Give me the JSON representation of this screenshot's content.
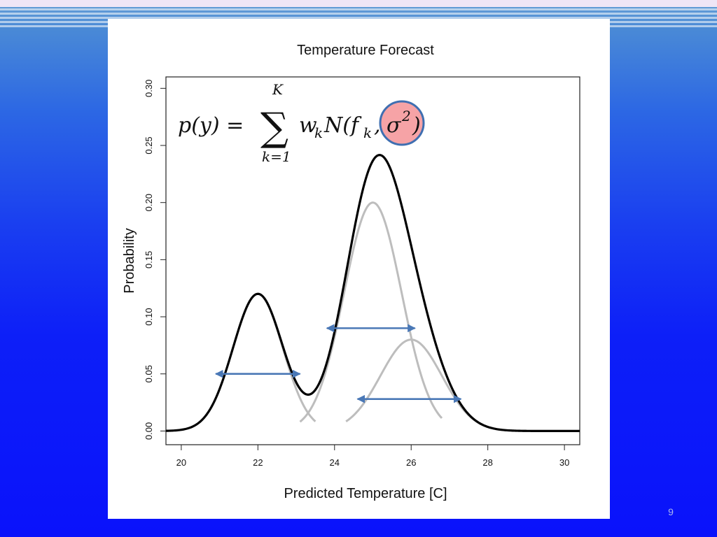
{
  "slide": {
    "number": "9"
  },
  "colors": {
    "mixture": "#000000",
    "component": "#bdbdbd",
    "arrow": "#4a78b6",
    "highlight_fill": "#f6a3a6",
    "highlight_stroke": "#3f6fb1"
  },
  "formula": {
    "lhs": "p(y) =",
    "sum_symbol": "∑",
    "upper": "K",
    "lower": "k=1",
    "term": "w",
    "term_sub": "k",
    "normal": "N(f",
    "normal_sub": "k",
    "comma": ",",
    "sigma": "σ",
    "sigma_sup": "2",
    "close": ")"
  },
  "chart_data": {
    "type": "line",
    "title": "Temperature Forecast",
    "xlabel": "Predicted Temperature [C]",
    "ylabel": "Probability",
    "xlim": [
      19.6,
      30.4
    ],
    "ylim": [
      -0.012,
      0.31
    ],
    "x_ticks": [
      "20",
      "22",
      "24",
      "26",
      "28",
      "30"
    ],
    "y_ticks": [
      "0.00",
      "0.05",
      "0.10",
      "0.15",
      "0.20",
      "0.25",
      "0.30"
    ],
    "components": [
      {
        "mean": 22,
        "sd": 0.65,
        "weight": 0.195,
        "peak": 0.12,
        "x_range": [
          21.7,
          23.5
        ]
      },
      {
        "mean": 25,
        "sd": 0.75,
        "weight": 0.376,
        "peak": 0.2,
        "x_range": [
          23.1,
          26.8
        ]
      },
      {
        "mean": 26,
        "sd": 0.8,
        "weight": 0.16,
        "peak": 0.08,
        "x_range": [
          24.3,
          28.1
        ]
      }
    ],
    "mixture_x_range": [
      19.6,
      30.4
    ],
    "arrows": [
      {
        "y": 0.05,
        "x_from": 20.9,
        "x_to": 23.1
      },
      {
        "y": 0.09,
        "x_from": 23.8,
        "x_to": 26.1
      },
      {
        "y": 0.028,
        "x_from": 24.6,
        "x_to": 27.3
      }
    ]
  }
}
